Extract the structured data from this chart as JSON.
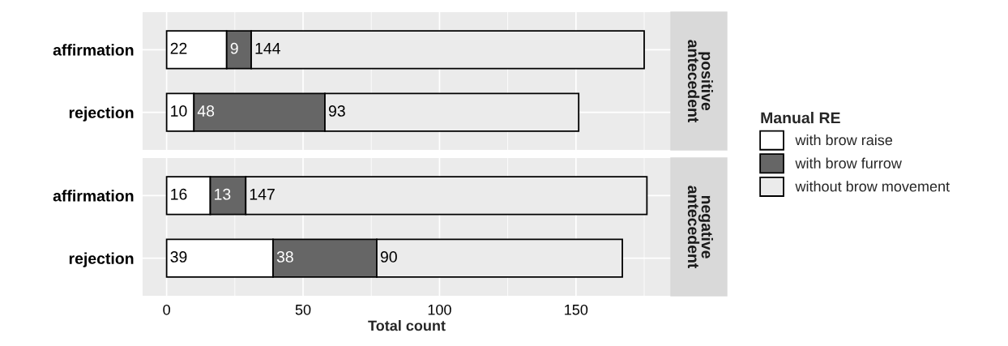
{
  "chart_data": [
    {
      "type": "bar",
      "orientation": "horizontal",
      "stacked": true,
      "y2label": "positive\nantecedent",
      "categories": [
        "affirmation",
        "rejection"
      ],
      "series": [
        {
          "name": "with brow raise",
          "color": "#ffffff",
          "values": [
            22,
            10
          ]
        },
        {
          "name": "with brow furrow",
          "color": "#666666",
          "values": [
            9,
            48
          ]
        },
        {
          "name": "without brow movement",
          "color": "#ebebeb",
          "values": [
            144,
            93
          ]
        }
      ],
      "legend_title": "Manual RE",
      "legend": "right",
      "data_labels": true,
      "xlim": [
        -8.8,
        184.8
      ],
      "xticks": [
        0,
        50,
        100,
        150
      ],
      "grid": true,
      "tick_labels": "y"
    },
    {
      "type": "bar",
      "orientation": "horizontal",
      "stacked": true,
      "y2label": "negative\nantecedent",
      "categories": [
        "affirmation",
        "rejection"
      ],
      "series": [
        {
          "color": "#ffffff",
          "values": [
            16,
            39
          ]
        },
        {
          "color": "#666666",
          "values": [
            13,
            38
          ]
        },
        {
          "color": "#ebebeb",
          "values": [
            147,
            90
          ]
        }
      ],
      "xlabel": "Total count",
      "data_labels": true,
      "xlim": [
        -8.8,
        184.8
      ],
      "xticks": [
        0,
        50,
        100,
        150
      ],
      "grid": true
    }
  ]
}
